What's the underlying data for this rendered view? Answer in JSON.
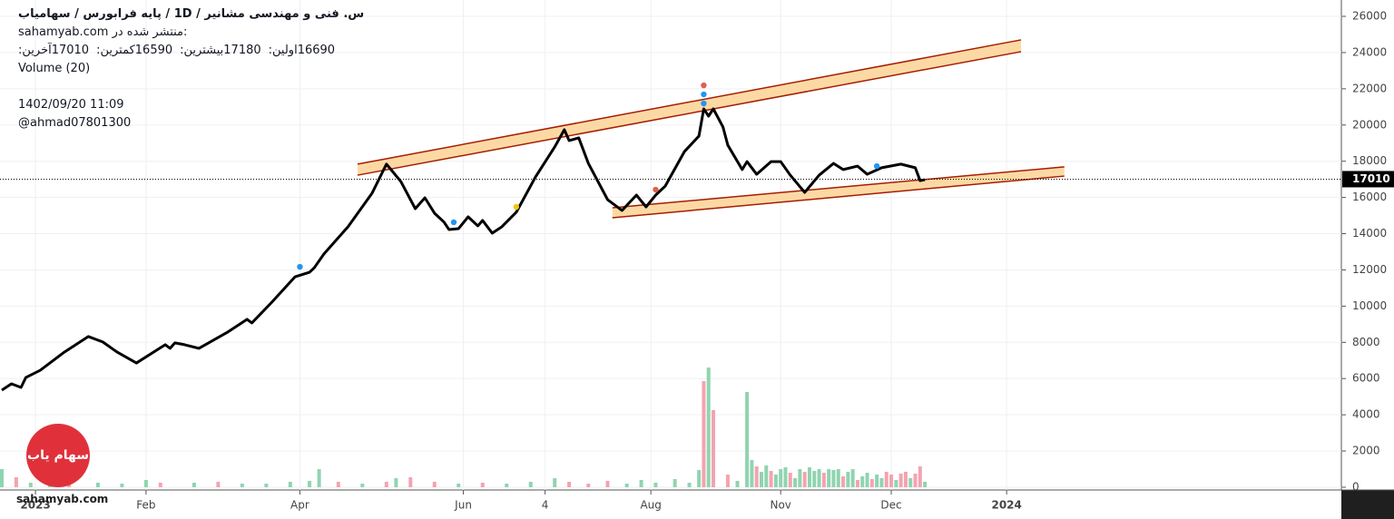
{
  "chart_data": {
    "type": "line",
    "header": {
      "title": "س. فنی و مهندسی مشانیر /  1D  /  پایه فرابورس / سهامیاب",
      "published_label": "منتشر شده در:",
      "published_site": "sahamyab.com",
      "ohlc": [
        {
          "label": "اولین:",
          "value": 16690
        },
        {
          "label": "بیشترین:",
          "value": 17180
        },
        {
          "label": "کمترین:",
          "value": 16590
        },
        {
          "label": "آخرین:",
          "value": 17010
        }
      ],
      "volume_label": "Volume (20)",
      "timestamp": "1402/09/20 11:09",
      "author": "@ahmad07801300"
    },
    "watermark": "sahamyab.com",
    "logo_text": "سهام یاب",
    "x": [
      0,
      2,
      4,
      5,
      8,
      13,
      18,
      21,
      24,
      28,
      34,
      35,
      36,
      38,
      41,
      43,
      47,
      51,
      52,
      56,
      61,
      64,
      65,
      67,
      72,
      77,
      80,
      83,
      86,
      88,
      90,
      92,
      93,
      95,
      97,
      99,
      100,
      102,
      104,
      107,
      111,
      115,
      117,
      118,
      120,
      122,
      126,
      129,
      132,
      134,
      136,
      138,
      142,
      145,
      146,
      147,
      148,
      150,
      151,
      154,
      155,
      157,
      160,
      162,
      164,
      167,
      170,
      173,
      175,
      178,
      180,
      183,
      187,
      190,
      191,
      192
    ],
    "series": [
      {
        "color": "#000000",
        "values": [
          5360,
          5710,
          5510,
          6060,
          6460,
          7460,
          8320,
          8020,
          7460,
          6860,
          7870,
          7670,
          7970,
          7870,
          7670,
          7970,
          8570,
          9270,
          9070,
          10170,
          11620,
          11870,
          12120,
          12880,
          14380,
          16230,
          17840,
          16880,
          15380,
          15980,
          15130,
          14630,
          14230,
          14280,
          14930,
          14430,
          14730,
          14030,
          14380,
          15180,
          17130,
          18790,
          19740,
          19140,
          19290,
          17880,
          15880,
          15280,
          16130,
          15480,
          16130,
          16630,
          18540,
          19390,
          20890,
          20490,
          20890,
          19890,
          18890,
          17540,
          17980,
          17280,
          17980,
          17980,
          17230,
          16280,
          17230,
          17880,
          17540,
          17730,
          17280,
          17640,
          17840,
          17640,
          16930,
          16980
        ]
      }
    ],
    "volume": {
      "x": [
        0,
        3,
        6,
        10,
        14,
        20,
        25,
        30,
        33,
        40,
        45,
        50,
        55,
        60,
        64,
        66,
        70,
        75,
        80,
        82,
        85,
        90,
        95,
        100,
        105,
        110,
        115,
        118,
        122,
        126,
        130,
        133,
        136,
        140,
        143,
        145,
        146,
        147,
        148,
        151,
        153,
        155,
        156,
        157,
        158,
        159,
        160,
        161,
        162,
        163,
        164,
        165,
        166,
        167,
        168,
        169,
        170,
        171,
        172,
        173,
        174,
        175,
        176,
        177,
        178,
        179,
        180,
        181,
        182,
        183,
        184,
        185,
        186,
        187,
        188,
        189,
        190,
        191,
        192
      ],
      "values": [
        1000,
        550,
        250,
        300,
        200,
        250,
        200,
        400,
        250,
        250,
        300,
        200,
        200,
        300,
        350,
        1000,
        300,
        200,
        300,
        500,
        550,
        300,
        200,
        250,
        200,
        300,
        500,
        300,
        200,
        350,
        200,
        400,
        250,
        450,
        250,
        950,
        5860,
        6610,
        4260,
        700,
        350,
        5260,
        1500,
        1150,
        850,
        1200,
        900,
        700,
        1000,
        1100,
        800,
        500,
        1000,
        850,
        1100,
        900,
        1000,
        800,
        1000,
        950,
        1000,
        600,
        850,
        1000,
        400,
        600,
        800,
        450,
        700,
        500,
        850,
        700,
        400,
        750,
        850,
        500,
        750,
        1150,
        300
      ],
      "colors": [
        "#8fd4b0",
        "#f4a3b0",
        "#8fd4b0",
        "#8fd4b0",
        "#f4a3b0",
        "#8fd4b0",
        "#8fd4b0",
        "#8fd4b0",
        "#f4a3b0",
        "#8fd4b0",
        "#f4a3b0",
        "#8fd4b0",
        "#8fd4b0",
        "#8fd4b0",
        "#8fd4b0",
        "#8fd4b0",
        "#f4a3b0",
        "#8fd4b0",
        "#f4a3b0",
        "#8fd4b0",
        "#f4a3b0",
        "#f4a3b0",
        "#8fd4b0",
        "#f4a3b0",
        "#8fd4b0",
        "#8fd4b0",
        "#8fd4b0",
        "#f4a3b0",
        "#f4a3b0",
        "#f4a3b0",
        "#8fd4b0",
        "#8fd4b0",
        "#8fd4b0",
        "#8fd4b0",
        "#8fd4b0",
        "#8fd4b0",
        "#f4a3b0",
        "#8fd4b0",
        "#f4a3b0",
        "#f4a3b0",
        "#8fd4b0",
        "#8fd4b0",
        "#8fd4b0",
        "#f4a3b0",
        "#8fd4b0",
        "#8fd4b0",
        "#f4a3b0",
        "#8fd4b0",
        "#8fd4b0",
        "#8fd4b0",
        "#f4a3b0",
        "#8fd4b0",
        "#8fd4b0",
        "#f4a3b0",
        "#8fd4b0",
        "#8fd4b0",
        "#8fd4b0",
        "#f4a3b0",
        "#8fd4b0",
        "#8fd4b0",
        "#8fd4b0",
        "#f4a3b0",
        "#8fd4b0",
        "#8fd4b0",
        "#f4a3b0",
        "#8fd4b0",
        "#8fd4b0",
        "#f4a3b0",
        "#8fd4b0",
        "#8fd4b0",
        "#f4a3b0",
        "#f4a3b0",
        "#8fd4b0",
        "#f4a3b0",
        "#f4a3b0",
        "#8fd4b0",
        "#f4a3b0",
        "#f4a3b0",
        "#8fd4b0"
      ]
    },
    "channels": [
      {
        "x": [
          74,
          212
        ],
        "upper": [
          17840,
          24700
        ],
        "lower": [
          17230,
          24050
        ]
      },
      {
        "x": [
          127,
          221
        ],
        "upper": [
          15430,
          17690
        ],
        "lower": [
          14880,
          17180
        ]
      }
    ],
    "signals": {
      "x": [
        62,
        94,
        107,
        136,
        146,
        146,
        146,
        182
      ],
      "values": [
        12170,
        14630,
        15480,
        16430,
        22190,
        21690,
        21190,
        17730
      ],
      "colors": [
        "#2196f3",
        "#2196f3",
        "#f5c518",
        "#e0604a",
        "#e0604a",
        "#2196f3",
        "#2196f3",
        "#2196f3"
      ]
    },
    "last_price": 17010,
    "xlim": [
      0,
      279
    ],
    "ylim": [
      0,
      26000
    ],
    "xticks": [
      {
        "value": 7,
        "label": "2023"
      },
      {
        "value": 30,
        "label": "Feb"
      },
      {
        "value": 62,
        "label": "Apr"
      },
      {
        "value": 96,
        "label": "Jun"
      },
      {
        "value": 113,
        "label": "4"
      },
      {
        "value": 135,
        "label": "Aug"
      },
      {
        "value": 162,
        "label": "Nov"
      },
      {
        "value": 185,
        "label": "Dec"
      },
      {
        "value": 209,
        "label": "2024"
      }
    ],
    "yticks": [
      0,
      2000,
      4000,
      6000,
      8000,
      10000,
      12000,
      14000,
      16000,
      18000,
      20000,
      22000,
      24000,
      26000
    ],
    "grid": true
  }
}
